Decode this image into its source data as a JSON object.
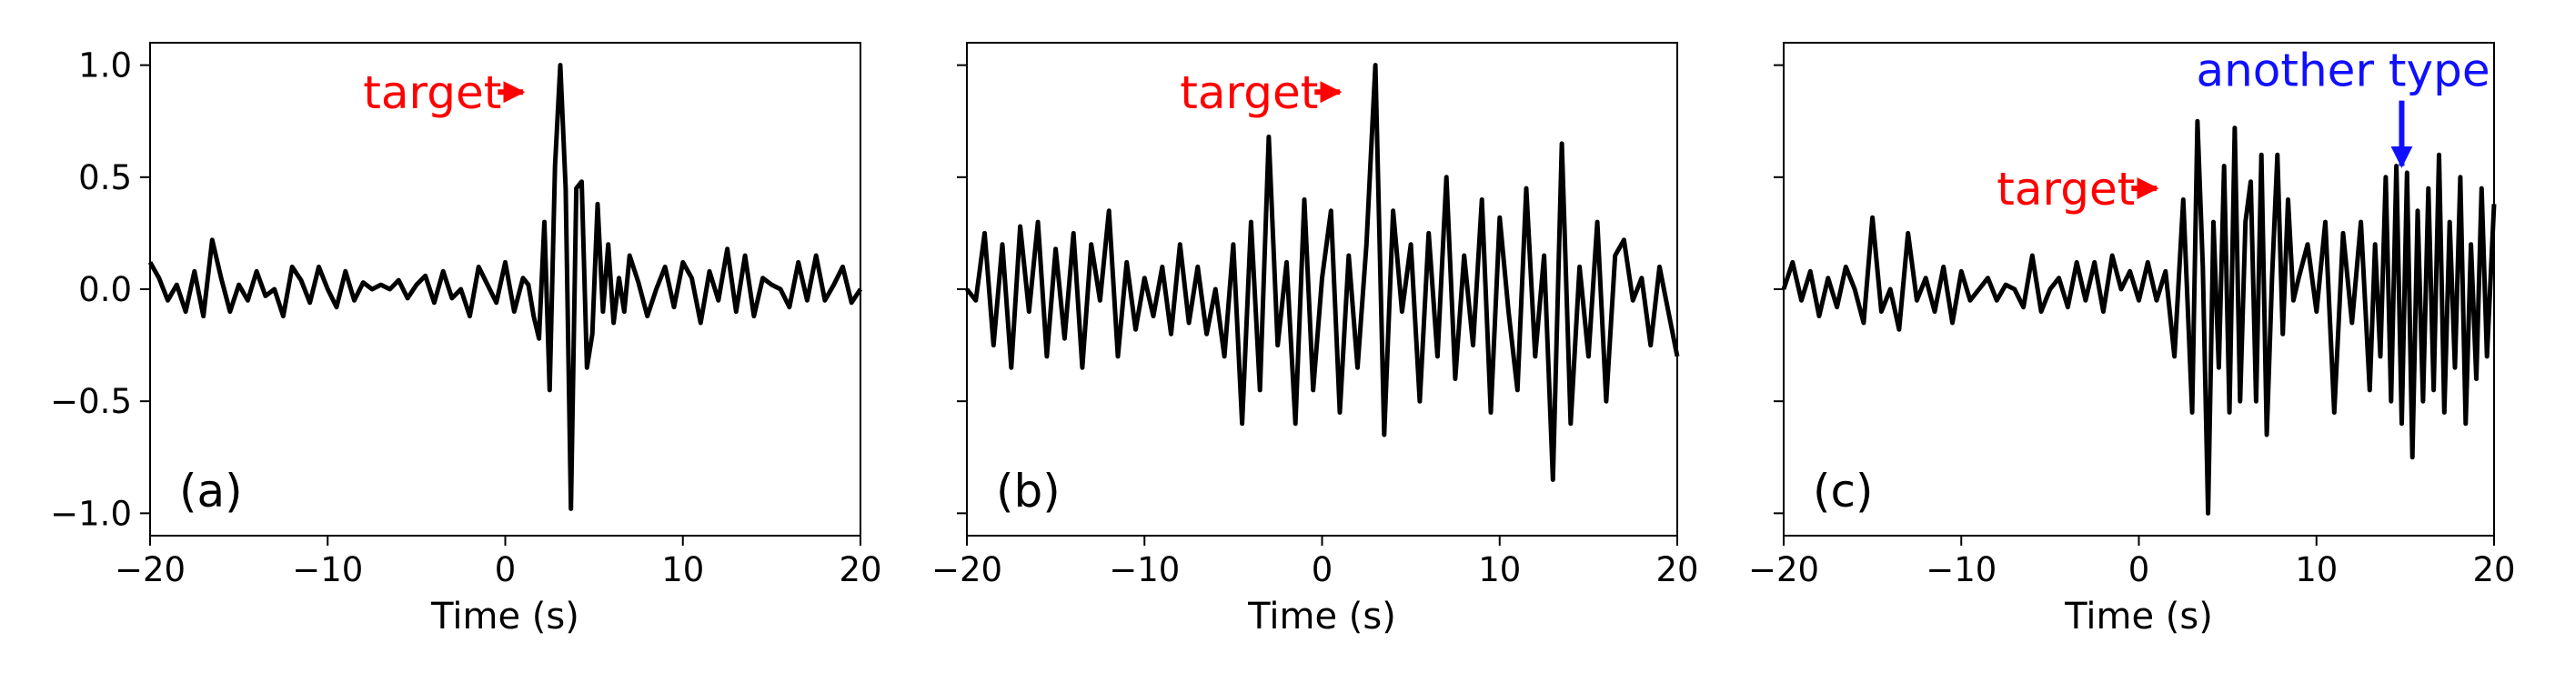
{
  "chart_data": [
    {
      "type": "line",
      "panel_label": "(a)",
      "xlabel": "Time (s)",
      "ylabel": "",
      "xlim": [
        -20,
        20
      ],
      "ylim": [
        -1.1,
        1.1
      ],
      "xticks": [
        -20,
        -10,
        0,
        10,
        20
      ],
      "xtick_labels": [
        "−20",
        "−10",
        "0",
        "10",
        "20"
      ],
      "yticks": [
        1.0,
        0.5,
        0.0,
        -0.5,
        -1.0
      ],
      "ytick_labels": [
        "1.0",
        "0.5",
        "0.0",
        "−0.5",
        "−1.0"
      ],
      "show_yticklabels": true,
      "grid": false,
      "series": [
        {
          "color": "#000000",
          "x": [
            -20,
            -19.5,
            -19,
            -18.5,
            -18,
            -17.5,
            -17,
            -16.5,
            -16,
            -15.5,
            -15,
            -14.5,
            -14,
            -13.5,
            -13,
            -12.5,
            -12,
            -11.5,
            -11,
            -10.5,
            -10,
            -9.5,
            -9,
            -8.5,
            -8,
            -7.5,
            -7,
            -6.5,
            -6,
            -5.5,
            -5,
            -4.5,
            -4,
            -3.5,
            -3,
            -2.5,
            -2,
            -1.5,
            -1,
            -0.5,
            0,
            0.5,
            1,
            1.3,
            1.6,
            1.9,
            2.2,
            2.5,
            2.8,
            3.1,
            3.4,
            3.7,
            4,
            4.3,
            4.6,
            4.9,
            5.2,
            5.5,
            5.8,
            6.1,
            6.4,
            6.7,
            7,
            7.5,
            8,
            8.5,
            9,
            9.5,
            10,
            10.5,
            11,
            11.5,
            12,
            12.5,
            13,
            13.5,
            14,
            14.5,
            15,
            15.5,
            16,
            16.5,
            17,
            17.5,
            18,
            18.5,
            19,
            19.5,
            20
          ],
          "y": [
            0.12,
            0.05,
            -0.05,
            0.02,
            -0.1,
            0.08,
            -0.12,
            0.22,
            0.05,
            -0.1,
            0.02,
            -0.05,
            0.08,
            -0.03,
            0.0,
            -0.12,
            0.1,
            0.04,
            -0.06,
            0.1,
            0.0,
            -0.08,
            0.08,
            -0.05,
            0.03,
            0.0,
            0.02,
            0.0,
            0.04,
            -0.04,
            0.02,
            0.06,
            -0.06,
            0.08,
            -0.04,
            0.0,
            -0.12,
            0.1,
            0.02,
            -0.06,
            0.12,
            -0.1,
            0.05,
            0.02,
            -0.12,
            -0.22,
            0.3,
            -0.45,
            0.55,
            1.0,
            0.45,
            -0.98,
            0.45,
            0.48,
            -0.35,
            -0.2,
            0.38,
            -0.1,
            0.2,
            -0.15,
            0.05,
            -0.1,
            0.15,
            0.03,
            -0.12,
            0.0,
            0.1,
            -0.08,
            0.12,
            0.05,
            -0.15,
            0.08,
            -0.05,
            0.18,
            -0.1,
            0.15,
            -0.12,
            0.05,
            0.02,
            0.0,
            -0.08,
            0.12,
            -0.05,
            0.15,
            -0.05,
            0.02,
            0.1,
            -0.06,
            0.0
          ]
        }
      ],
      "annotations": [
        {
          "text": "target",
          "color": "#ff0000",
          "x": -8,
          "y": 0.88,
          "arrow": "right",
          "arrow_to_x": 1.0
        }
      ]
    },
    {
      "type": "line",
      "panel_label": "(b)",
      "xlabel": "Time (s)",
      "ylabel": "",
      "xlim": [
        -20,
        20
      ],
      "ylim": [
        -1.1,
        1.1
      ],
      "xticks": [
        -20,
        -10,
        0,
        10,
        20
      ],
      "xtick_labels": [
        "−20",
        "−10",
        "0",
        "10",
        "20"
      ],
      "yticks": [
        1.0,
        0.5,
        0.0,
        -0.5,
        -1.0
      ],
      "show_yticklabels": false,
      "grid": false,
      "series": [
        {
          "color": "#000000",
          "x": [
            -20,
            -19.5,
            -19,
            -18.5,
            -18,
            -17.5,
            -17,
            -16.5,
            -16,
            -15.5,
            -15,
            -14.5,
            -14,
            -13.5,
            -13,
            -12.5,
            -12,
            -11.5,
            -11,
            -10.5,
            -10,
            -9.5,
            -9,
            -8.5,
            -8,
            -7.5,
            -7,
            -6.5,
            -6,
            -5.5,
            -5,
            -4.5,
            -4,
            -3.5,
            -3,
            -2.5,
            -2,
            -1.5,
            -1,
            -0.5,
            0,
            0.5,
            1,
            1.5,
            2,
            2.5,
            3,
            3.5,
            4,
            4.5,
            5,
            5.5,
            6,
            6.5,
            7,
            7.5,
            8,
            8.5,
            9,
            9.5,
            10,
            10.5,
            11,
            11.5,
            12,
            12.5,
            13,
            13.5,
            14,
            14.5,
            15,
            15.5,
            16,
            16.5,
            17,
            17.5,
            18,
            18.5,
            19,
            19.5,
            20
          ],
          "y": [
            0.0,
            -0.05,
            0.25,
            -0.25,
            0.2,
            -0.35,
            0.28,
            -0.1,
            0.3,
            -0.3,
            0.18,
            -0.22,
            0.25,
            -0.35,
            0.2,
            -0.05,
            0.35,
            -0.3,
            0.12,
            -0.18,
            0.05,
            -0.12,
            0.1,
            -0.2,
            0.2,
            -0.15,
            0.1,
            -0.2,
            0.0,
            -0.3,
            0.2,
            -0.6,
            0.3,
            -0.45,
            0.68,
            -0.25,
            0.12,
            -0.6,
            0.4,
            -0.45,
            0.05,
            0.35,
            -0.55,
            0.15,
            -0.35,
            0.2,
            1.0,
            -0.65,
            0.35,
            -0.1,
            0.2,
            -0.5,
            0.25,
            -0.3,
            0.5,
            -0.4,
            0.15,
            -0.25,
            0.4,
            -0.55,
            0.32,
            -0.1,
            -0.45,
            0.45,
            -0.3,
            0.15,
            -0.85,
            0.65,
            -0.6,
            0.1,
            -0.3,
            0.3,
            -0.5,
            0.15,
            0.22,
            -0.05,
            0.05,
            -0.25,
            0.1,
            -0.1,
            -0.3
          ]
        }
      ],
      "annotations": [
        {
          "text": "target",
          "color": "#ff0000",
          "x": -8,
          "y": 0.88,
          "arrow": "right",
          "arrow_to_x": 1.0
        }
      ]
    },
    {
      "type": "line",
      "panel_label": "(c)",
      "xlabel": "Time (s)",
      "ylabel": "",
      "xlim": [
        -20,
        20
      ],
      "ylim": [
        -1.1,
        1.1
      ],
      "xticks": [
        -20,
        -10,
        0,
        10,
        20
      ],
      "xtick_labels": [
        "−20",
        "−10",
        "0",
        "10",
        "20"
      ],
      "yticks": [
        1.0,
        0.5,
        0.0,
        -0.5,
        -1.0
      ],
      "show_yticklabels": false,
      "grid": false,
      "series": [
        {
          "color": "#000000",
          "x": [
            -20,
            -19.5,
            -19,
            -18.5,
            -18,
            -17.5,
            -17,
            -16.5,
            -16,
            -15.5,
            -15,
            -14.5,
            -14,
            -13.5,
            -13,
            -12.5,
            -12,
            -11.5,
            -11,
            -10.5,
            -10,
            -9.5,
            -9,
            -8.5,
            -8,
            -7.5,
            -7,
            -6.5,
            -6,
            -5.5,
            -5,
            -4.5,
            -4,
            -3.5,
            -3,
            -2.5,
            -2,
            -1.5,
            -1,
            -0.5,
            0,
            0.5,
            1,
            1.5,
            2,
            2.5,
            3,
            3.3,
            3.6,
            3.9,
            4.2,
            4.5,
            4.8,
            5.1,
            5.4,
            5.7,
            6,
            6.3,
            6.6,
            6.9,
            7.2,
            7.5,
            7.8,
            8.1,
            8.4,
            8.7,
            9,
            9.5,
            10,
            10.5,
            11,
            11.5,
            12,
            12.5,
            13,
            13.3,
            13.6,
            13.9,
            14.2,
            14.5,
            14.8,
            15.1,
            15.4,
            15.7,
            16,
            16.3,
            16.6,
            16.9,
            17.2,
            17.5,
            17.8,
            18.1,
            18.4,
            18.7,
            19,
            19.3,
            19.6,
            20
          ],
          "y": [
            0.0,
            0.12,
            -0.05,
            0.08,
            -0.12,
            0.05,
            -0.08,
            0.1,
            0.0,
            -0.15,
            0.32,
            -0.1,
            0.0,
            -0.18,
            0.25,
            -0.05,
            0.05,
            -0.1,
            0.1,
            -0.15,
            0.08,
            -0.05,
            0.0,
            0.05,
            -0.05,
            0.02,
            0.0,
            -0.08,
            0.15,
            -0.1,
            0.0,
            0.05,
            -0.08,
            0.12,
            -0.05,
            0.12,
            -0.1,
            0.15,
            0.0,
            0.08,
            -0.05,
            0.12,
            -0.05,
            0.08,
            -0.3,
            0.4,
            -0.55,
            0.75,
            0.1,
            -1.0,
            0.3,
            -0.35,
            0.55,
            -0.55,
            0.72,
            -0.5,
            0.3,
            0.48,
            -0.5,
            0.6,
            -0.65,
            0.05,
            0.6,
            -0.2,
            0.4,
            -0.05,
            0.05,
            0.2,
            -0.1,
            0.3,
            -0.55,
            0.25,
            -0.15,
            0.3,
            -0.45,
            0.2,
            -0.3,
            0.5,
            -0.5,
            0.55,
            -0.6,
            0.52,
            -0.75,
            0.35,
            -0.5,
            0.45,
            -0.45,
            0.6,
            -0.55,
            0.3,
            -0.35,
            0.5,
            -0.6,
            0.2,
            -0.4,
            0.45,
            -0.3,
            0.38
          ]
        }
      ],
      "annotations": [
        {
          "text": "target",
          "color": "#ff0000",
          "x": -8,
          "y": 0.45,
          "arrow": "right",
          "arrow_to_x": 1.0
        },
        {
          "text": "another type",
          "color": "#1010ff",
          "x": 11.5,
          "y": 0.98,
          "arrow": "down",
          "arrow_to_y": 0.55,
          "arrow_x": 14.8
        }
      ]
    }
  ]
}
